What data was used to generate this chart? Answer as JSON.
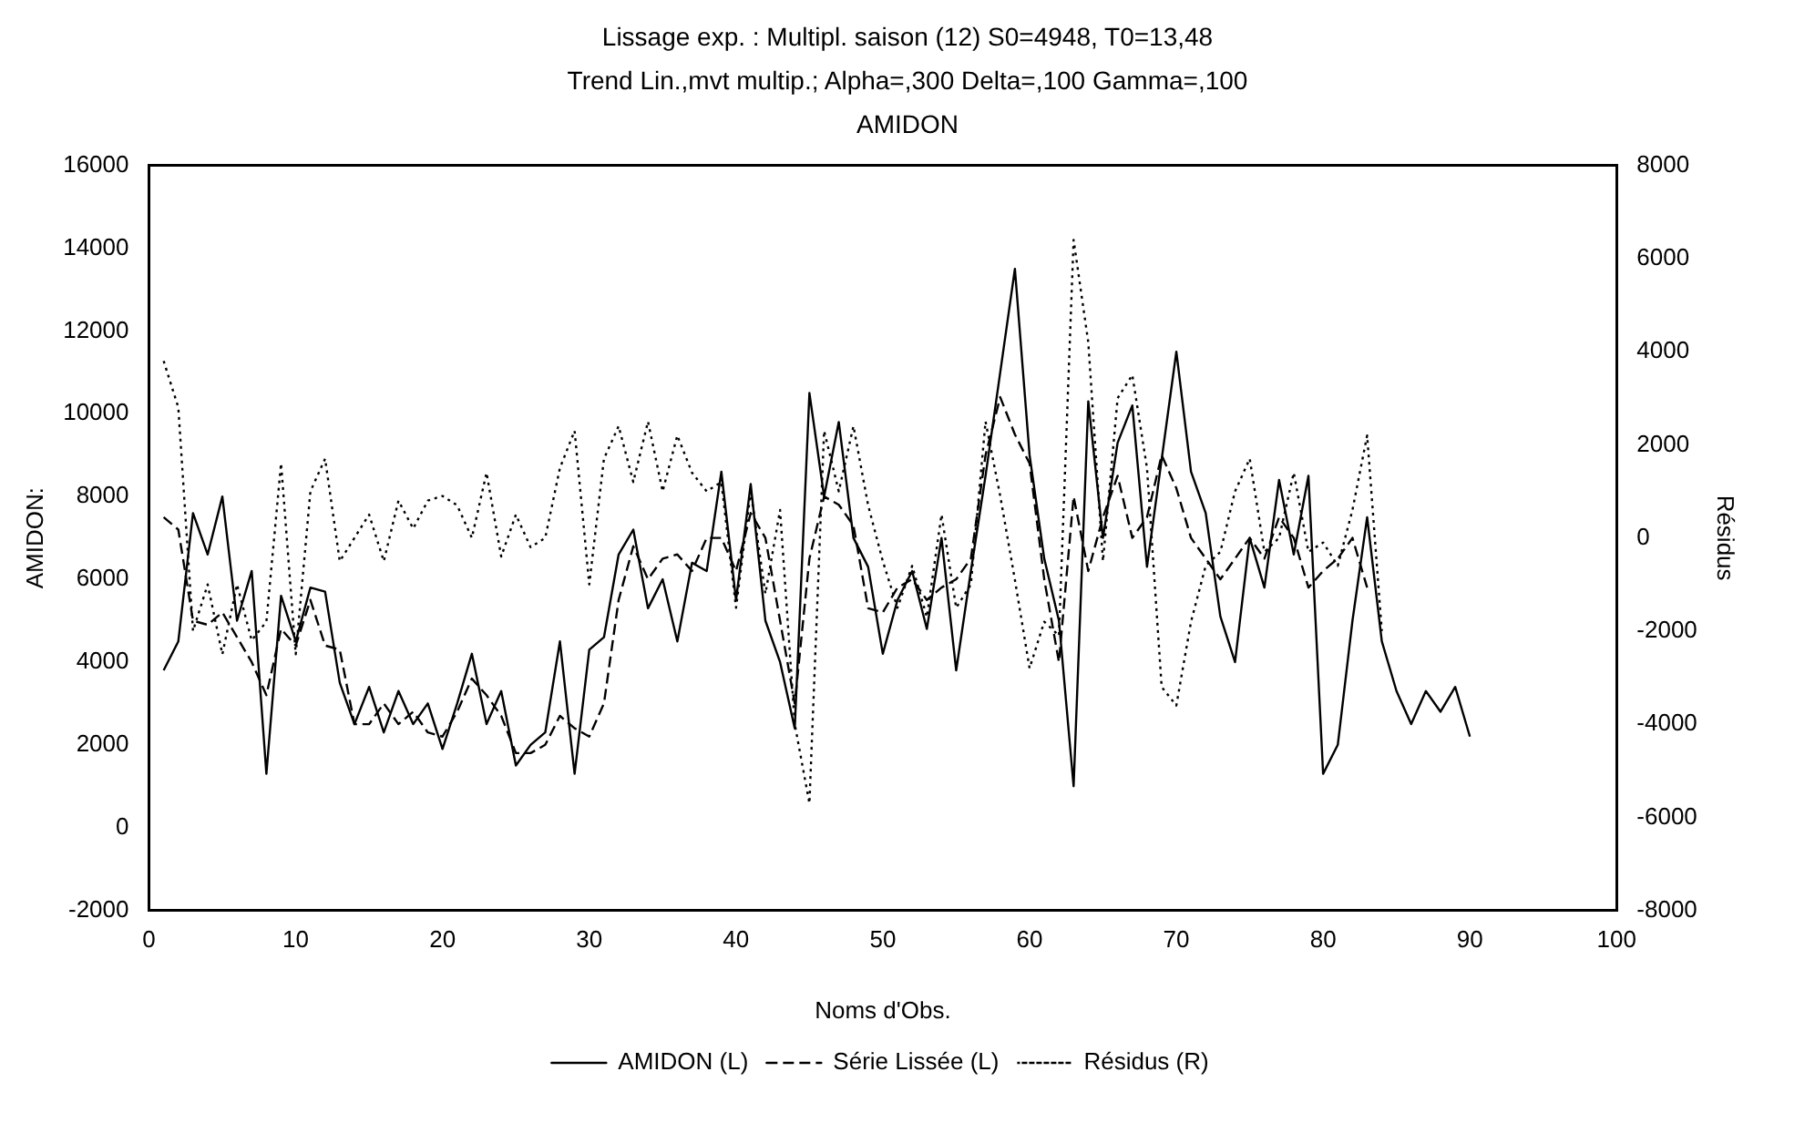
{
  "chart_data": {
    "type": "line",
    "title": "Lissage exp. : Multipl. saison (12) S0=4948, T0=13,48",
    "subtitle": "Trend Lin.,mvt multip.; Alpha=,300 Delta=,100 Gamma=,100",
    "annotations": [
      "AMIDON"
    ],
    "xlabel": "Noms d'Obs.",
    "ylabel": "AMIDON:",
    "y2label": "Résidus",
    "xlim": [
      0,
      100
    ],
    "xticks": [
      0,
      10,
      20,
      30,
      40,
      50,
      60,
      70,
      80,
      90,
      100
    ],
    "ylim": [
      -2000,
      16000
    ],
    "yticks": [
      -2000,
      0,
      2000,
      4000,
      6000,
      8000,
      10000,
      12000,
      14000,
      16000
    ],
    "y2lim": [
      -8000,
      8000
    ],
    "y2ticks": [
      -8000,
      -6000,
      -4000,
      -2000,
      0,
      2000,
      4000,
      6000,
      8000
    ],
    "grid": false,
    "legend": "bottom",
    "marker": "none",
    "series": [
      {
        "name": "AMIDON (L)",
        "color": "#000000",
        "line_style": "solid",
        "x": [
          1,
          2,
          3,
          4,
          5,
          6,
          7,
          8,
          9,
          10,
          11,
          12,
          13,
          14,
          15,
          16,
          17,
          18,
          19,
          20,
          21,
          22,
          23,
          24,
          25,
          26,
          27,
          28,
          29,
          30,
          31,
          32,
          33,
          34,
          35,
          36,
          37,
          38,
          39,
          40,
          41,
          42,
          43,
          44,
          45,
          46,
          47,
          48,
          49,
          50,
          51,
          52,
          53,
          54,
          55,
          56,
          57,
          58,
          59,
          60,
          61,
          62,
          63,
          64,
          65,
          66,
          67,
          68,
          69,
          70,
          71,
          72,
          73,
          74,
          75,
          76,
          77,
          78,
          79,
          80,
          81,
          82,
          83,
          84,
          85,
          86,
          87,
          88,
          89,
          90
        ],
        "values": [
          3800,
          4500,
          7600,
          6600,
          8000,
          5000,
          6200,
          1300,
          5600,
          4500,
          5800,
          5700,
          3500,
          2500,
          3400,
          2300,
          3300,
          2500,
          3000,
          1900,
          3000,
          4200,
          2500,
          3300,
          1500,
          2000,
          2300,
          4500,
          1300,
          4300,
          4600,
          6600,
          7200,
          5300,
          6000,
          4500,
          6400,
          6200,
          8600,
          5500,
          8300,
          5000,
          4000,
          2400,
          10500,
          8000,
          9800,
          7000,
          6300,
          4200,
          5500,
          6200,
          4800,
          7000,
          3800,
          6200,
          8500,
          11000,
          13500,
          9000,
          6500,
          5000,
          1000,
          10300,
          7000,
          9300,
          10200,
          6300,
          8900,
          11500,
          8600,
          7600,
          5100,
          4000,
          7000,
          5800,
          8400,
          6600,
          8500,
          1300,
          2000,
          5000,
          7500,
          4500,
          3300,
          2500,
          3300,
          2800,
          3400,
          2200
        ]
      },
      {
        "name": "Série Lissée (L)",
        "color": "#000000",
        "line_style": "dashed",
        "x": [
          1,
          2,
          3,
          4,
          5,
          6,
          7,
          8,
          9,
          10,
          11,
          12,
          13,
          14,
          15,
          16,
          17,
          18,
          19,
          20,
          21,
          22,
          23,
          24,
          25,
          26,
          27,
          28,
          29,
          30,
          31,
          32,
          33,
          34,
          35,
          36,
          37,
          38,
          39,
          40,
          41,
          42,
          43,
          44,
          45,
          46,
          47,
          48,
          49,
          50,
          51,
          52,
          53,
          54,
          55,
          56,
          57,
          58,
          59,
          60,
          61,
          62,
          63,
          64,
          65,
          66,
          67,
          68,
          69,
          70,
          71,
          72,
          73,
          74,
          75,
          76,
          77,
          78,
          79,
          80,
          81,
          82,
          83
        ],
        "values": [
          7500,
          7200,
          5000,
          4900,
          5200,
          4600,
          4000,
          3200,
          4800,
          4400,
          5500,
          4400,
          4300,
          2500,
          2500,
          3000,
          2500,
          2800,
          2300,
          2200,
          2800,
          3600,
          3200,
          2700,
          1800,
          1800,
          2000,
          2700,
          2400,
          2200,
          3000,
          5500,
          6800,
          6000,
          6500,
          6600,
          6200,
          7000,
          7000,
          6200,
          7600,
          7000,
          5000,
          3000,
          6500,
          8000,
          7800,
          7300,
          5300,
          5200,
          5800,
          6000,
          5500,
          5800,
          6000,
          6500,
          9000,
          10400,
          9500,
          8800,
          6000,
          4000,
          8000,
          6200,
          7500,
          8500,
          7000,
          7500,
          9000,
          8200,
          7000,
          6500,
          6000,
          6500,
          7000,
          6500,
          7500,
          7000,
          5800,
          6200,
          6500,
          7000,
          5800
        ]
      },
      {
        "name": "Résidus (R)",
        "color": "#000000",
        "line_style": "dotted",
        "axis": "y2",
        "x": [
          1,
          2,
          3,
          4,
          5,
          6,
          7,
          8,
          9,
          10,
          11,
          12,
          13,
          14,
          15,
          16,
          17,
          18,
          19,
          20,
          21,
          22,
          23,
          24,
          25,
          26,
          27,
          28,
          29,
          30,
          31,
          32,
          33,
          34,
          35,
          36,
          37,
          38,
          39,
          40,
          41,
          42,
          43,
          44,
          45,
          46,
          47,
          48,
          49,
          50,
          51,
          52,
          53,
          54,
          55,
          56,
          57,
          58,
          59,
          60,
          61,
          62,
          63,
          64,
          65,
          66,
          67,
          68,
          69,
          70,
          71,
          72,
          73,
          74,
          75,
          76,
          77,
          78,
          79,
          80,
          81,
          82,
          83,
          84
        ],
        "values": [
          3800,
          2800,
          -2000,
          -1000,
          -2500,
          -1000,
          -2200,
          -1800,
          1600,
          -2500,
          1000,
          1700,
          -500,
          0,
          500,
          -500,
          800,
          200,
          800,
          900,
          700,
          0,
          1400,
          -400,
          500,
          -200,
          0,
          1500,
          2300,
          -1000,
          1700,
          2400,
          1200,
          2500,
          1000,
          2200,
          1400,
          1000,
          1200,
          -1500,
          1000,
          -1200,
          600,
          -4000,
          -5700,
          2300,
          1000,
          2400,
          700,
          -500,
          -1500,
          -600,
          -1700,
          500,
          -1500,
          -1000,
          2500,
          900,
          -900,
          -2800,
          -1800,
          -2100,
          6400,
          4200,
          -500,
          3000,
          3500,
          1500,
          -3200,
          -3600,
          -1800,
          -600,
          -300,
          1000,
          1700,
          -300,
          0,
          1400,
          -300,
          -100,
          -600,
          600,
          2200,
          -2000
        ]
      }
    ]
  }
}
